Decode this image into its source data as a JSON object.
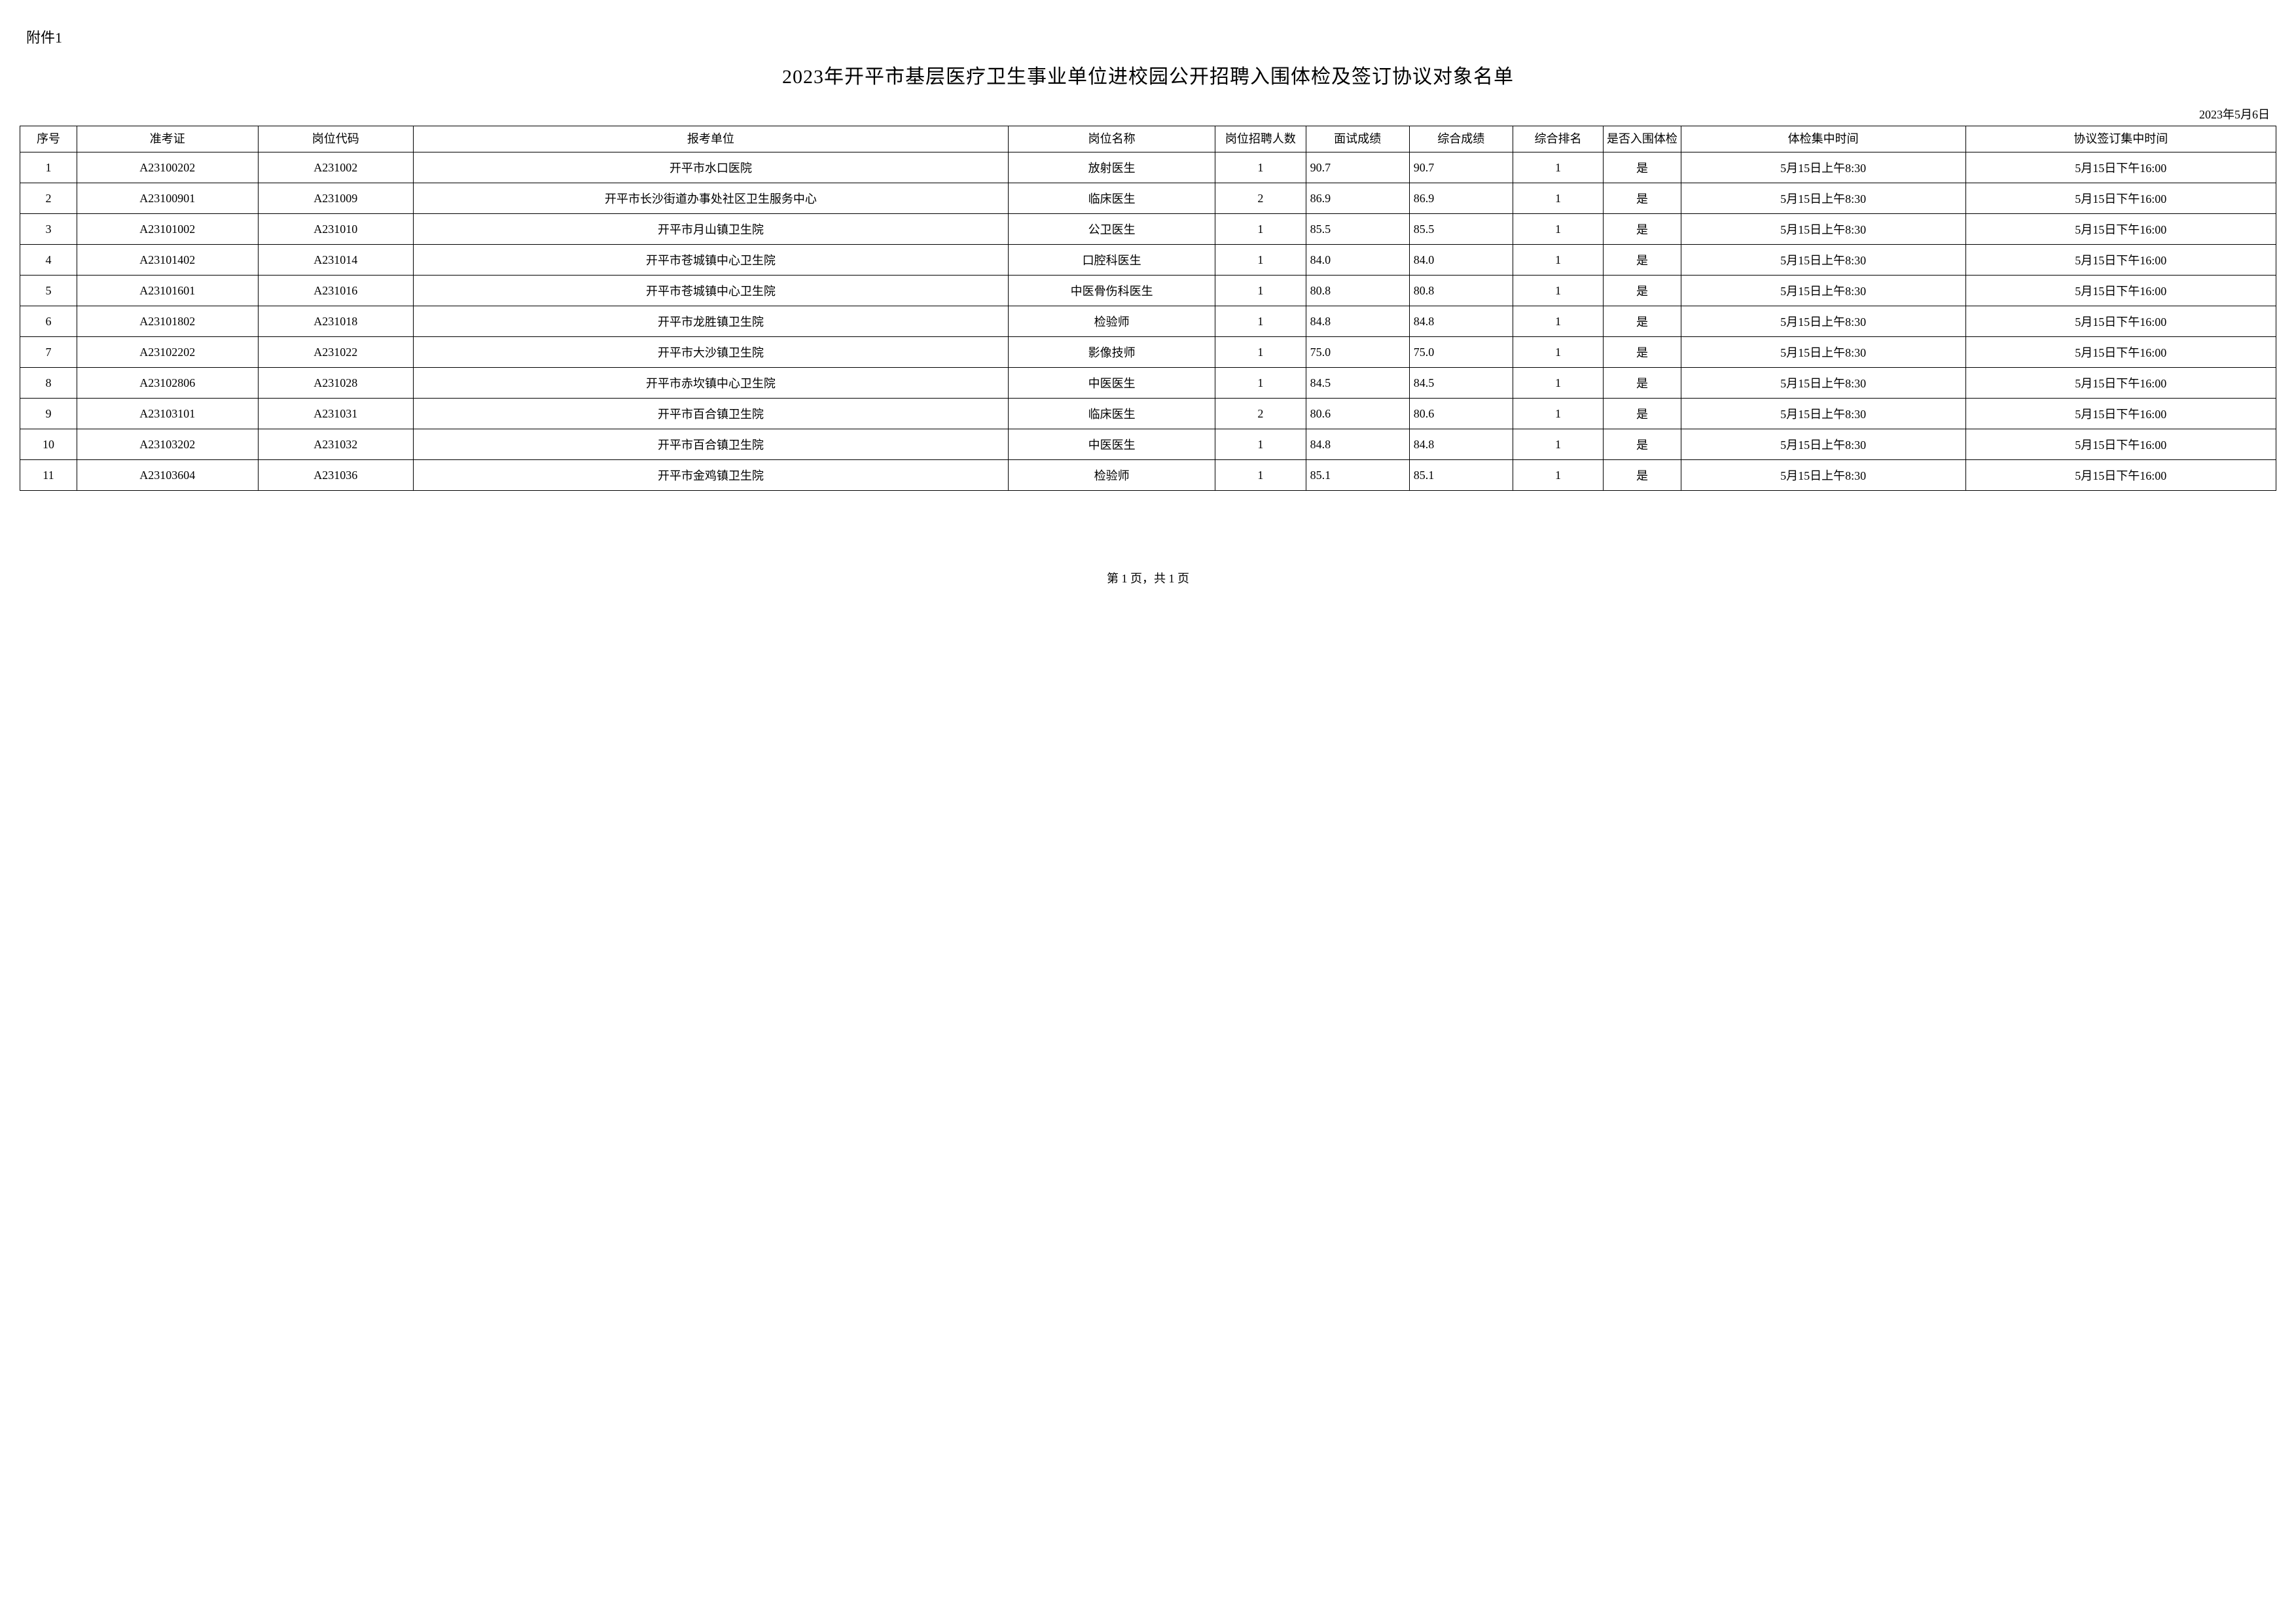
{
  "attachment_label": "附件1",
  "title": "2023年开平市基层医疗卫生事业单位进校园公开招聘入围体检及签订协议对象名单",
  "date_line": "2023年5月6日",
  "footer": "第 1 页，共 1 页",
  "table": {
    "columns": [
      "序号",
      "准考证",
      "岗位代码",
      "报考单位",
      "岗位名称",
      "岗位招聘人数",
      "面试成绩",
      "综合成绩",
      "综合排名",
      "是否入围体检",
      "体检集中时间",
      "协议签订集中时间"
    ],
    "rows": [
      [
        "1",
        "A23100202",
        "A231002",
        "开平市水口医院",
        "放射医生",
        "1",
        "90.7",
        "90.7",
        "1",
        "是",
        "5月15日上午8:30",
        "5月15日下午16:00"
      ],
      [
        "2",
        "A23100901",
        "A231009",
        "开平市长沙街道办事处社区卫生服务中心",
        "临床医生",
        "2",
        "86.9",
        "86.9",
        "1",
        "是",
        "5月15日上午8:30",
        "5月15日下午16:00"
      ],
      [
        "3",
        "A23101002",
        "A231010",
        "开平市月山镇卫生院",
        "公卫医生",
        "1",
        "85.5",
        "85.5",
        "1",
        "是",
        "5月15日上午8:30",
        "5月15日下午16:00"
      ],
      [
        "4",
        "A23101402",
        "A231014",
        "开平市苍城镇中心卫生院",
        "口腔科医生",
        "1",
        "84.0",
        "84.0",
        "1",
        "是",
        "5月15日上午8:30",
        "5月15日下午16:00"
      ],
      [
        "5",
        "A23101601",
        "A231016",
        "开平市苍城镇中心卫生院",
        "中医骨伤科医生",
        "1",
        "80.8",
        "80.8",
        "1",
        "是",
        "5月15日上午8:30",
        "5月15日下午16:00"
      ],
      [
        "6",
        "A23101802",
        "A231018",
        "开平市龙胜镇卫生院",
        "检验师",
        "1",
        "84.8",
        "84.8",
        "1",
        "是",
        "5月15日上午8:30",
        "5月15日下午16:00"
      ],
      [
        "7",
        "A23102202",
        "A231022",
        "开平市大沙镇卫生院",
        "影像技师",
        "1",
        "75.0",
        "75.0",
        "1",
        "是",
        "5月15日上午8:30",
        "5月15日下午16:00"
      ],
      [
        "8",
        "A23102806",
        "A231028",
        "开平市赤坎镇中心卫生院",
        "中医医生",
        "1",
        "84.5",
        "84.5",
        "1",
        "是",
        "5月15日上午8:30",
        "5月15日下午16:00"
      ],
      [
        "9",
        "A23103101",
        "A231031",
        "开平市百合镇卫生院",
        "临床医生",
        "2",
        "80.6",
        "80.6",
        "1",
        "是",
        "5月15日上午8:30",
        "5月15日下午16:00"
      ],
      [
        "10",
        "A23103202",
        "A231032",
        "开平市百合镇卫生院",
        "中医医生",
        "1",
        "84.8",
        "84.8",
        "1",
        "是",
        "5月15日上午8:30",
        "5月15日下午16:00"
      ],
      [
        "11",
        "A23103604",
        "A231036",
        "开平市金鸡镇卫生院",
        "检验师",
        "1",
        "85.1",
        "85.1",
        "1",
        "是",
        "5月15日上午8:30",
        "5月15日下午16:00"
      ]
    ]
  }
}
